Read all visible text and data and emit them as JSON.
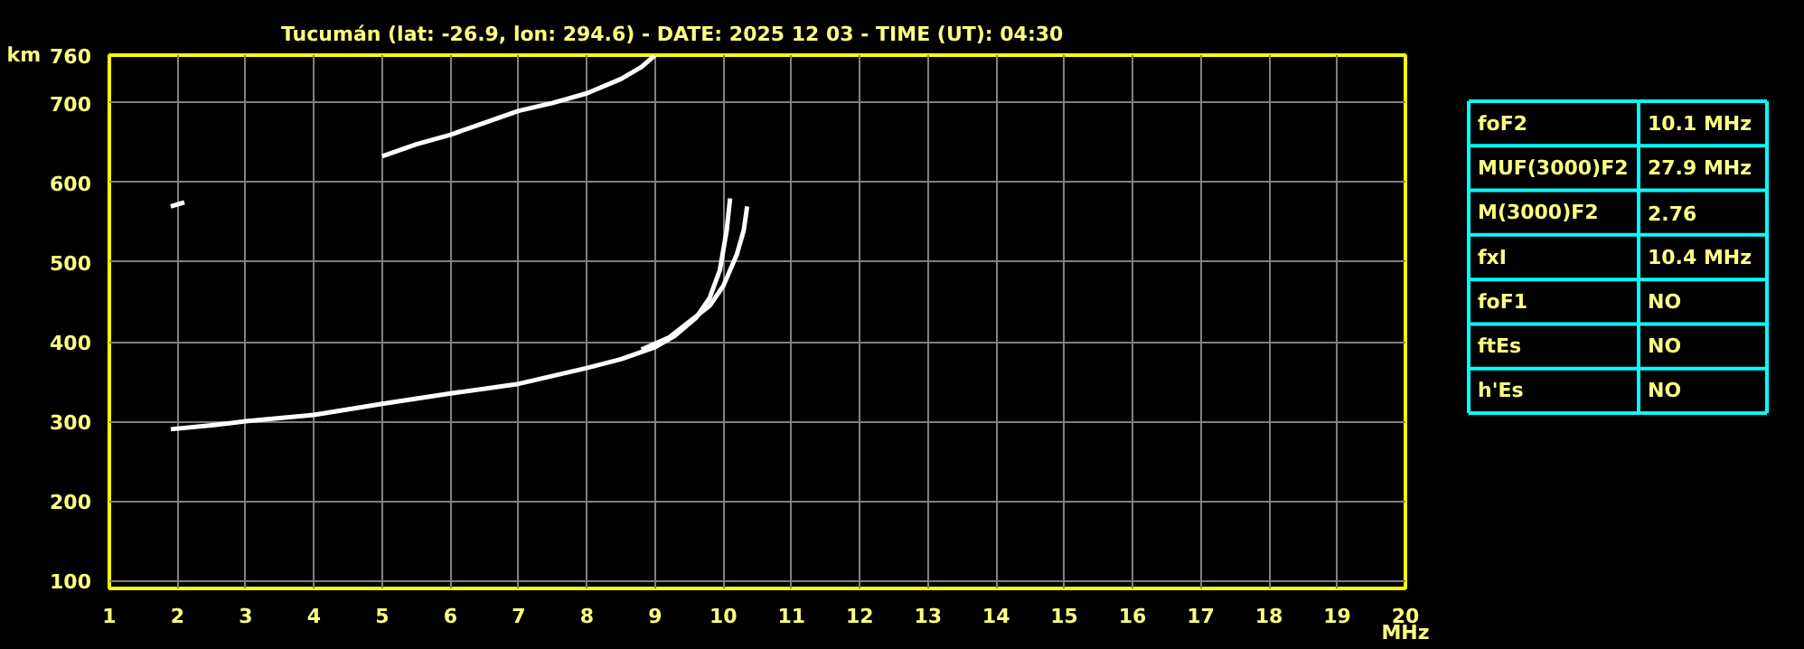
{
  "chart_data": [
    {
      "type": "line",
      "title": "Tucumán (lat: -26.9, lon: 294.6) - DATE: 2025 12 03 - TIME (UT): 04:30",
      "xlabel": "MHz",
      "ylabel": "km",
      "xlim": [
        1,
        20
      ],
      "ylim": [
        90,
        760
      ],
      "xticks": [
        1,
        2,
        3,
        4,
        5,
        6,
        7,
        8,
        9,
        10,
        11,
        12,
        13,
        14,
        15,
        16,
        17,
        18,
        19,
        20
      ],
      "yticks": [
        100,
        200,
        300,
        400,
        500,
        600,
        700,
        760
      ],
      "grid": true,
      "marker": "none",
      "line_style": "solid",
      "series": [
        {
          "color": "#ffffff",
          "x": [
            1.9,
            2.5,
            3,
            4,
            5,
            6,
            7,
            7.5,
            8,
            8.5,
            9,
            9.3,
            9.6,
            9.8,
            9.95,
            10.05,
            10.1
          ],
          "values": [
            290,
            295,
            300,
            308,
            322,
            335,
            347,
            357,
            367,
            378,
            393,
            408,
            430,
            455,
            490,
            540,
            580
          ]
        },
        {
          "color": "#ffffff",
          "x": [
            8.8,
            9.2,
            9.5,
            9.8,
            10.0,
            10.2,
            10.3,
            10.35
          ],
          "values": [
            390,
            405,
            425,
            445,
            470,
            510,
            540,
            570
          ]
        },
        {
          "color": "#ffffff",
          "x": [
            5,
            5.5,
            6,
            6.5,
            7,
            7.5,
            8,
            8.5,
            8.8,
            9.0
          ],
          "values": [
            633,
            648,
            660,
            675,
            690,
            700,
            712,
            730,
            745,
            760
          ]
        },
        {
          "color": "#ffffff",
          "x": [
            1.9,
            2.1
          ],
          "values": [
            570,
            575
          ]
        }
      ]
    },
    {
      "type": "other",
      "annotations": [
        "foF2",
        "10.1 MHz",
        "MUF(3000)F2",
        "27.9 MHz",
        "M(3000)F2",
        "2.76",
        "fxI",
        "10.4 MHz",
        "foF1",
        "NO",
        "ftEs",
        "NO",
        "h'Es",
        "NO"
      ]
    }
  ]
}
